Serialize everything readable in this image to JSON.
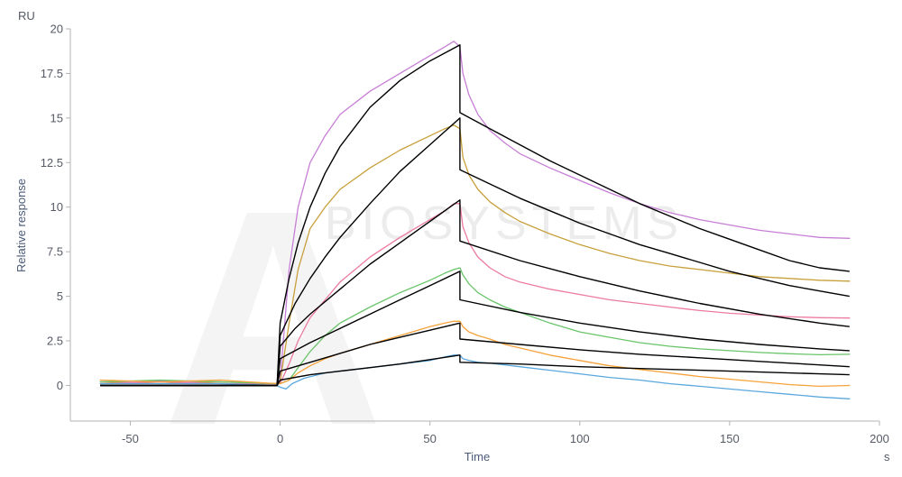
{
  "chart_data": {
    "type": "line",
    "ylabel": "Relative response",
    "yunit": "RU",
    "xlabel": "Time",
    "xunit": "s",
    "xlim": [
      -70,
      200
    ],
    "ylim": [
      -2,
      20
    ],
    "xticks": [
      -50,
      0,
      50,
      100,
      150,
      200
    ],
    "yticks": [
      0,
      2.5,
      5,
      7.5,
      10,
      12.5,
      15,
      17.5,
      20
    ],
    "ytick_labels": [
      "0",
      "2.5",
      "5",
      "7.5",
      "10",
      "12.5",
      "15",
      "17.5",
      "20"
    ],
    "grid": false,
    "legend": "none",
    "watermark": {
      "letter": "A",
      "text": "BIOSYSTEMS"
    },
    "series": [
      {
        "color": "#c77fd6",
        "x": [
          -60,
          -40,
          -20,
          -1,
          0,
          3,
          6,
          10,
          15,
          20,
          30,
          40,
          50,
          55,
          58,
          60,
          61,
          63,
          66,
          70,
          75,
          80,
          90,
          100,
          110,
          120,
          130,
          140,
          150,
          160,
          170,
          180,
          190
        ],
        "y": [
          0.2,
          0.25,
          0.2,
          0.1,
          0.3,
          6.5,
          10.0,
          12.5,
          14.0,
          15.2,
          16.5,
          17.5,
          18.5,
          19.0,
          19.3,
          19.0,
          17.5,
          16.3,
          15.2,
          14.3,
          13.6,
          13.0,
          12.2,
          11.5,
          10.8,
          10.2,
          9.7,
          9.3,
          9.0,
          8.7,
          8.5,
          8.3,
          8.25
        ]
      },
      {
        "color": "#c8a03c",
        "x": [
          -60,
          -40,
          -20,
          -1,
          0,
          3,
          6,
          10,
          15,
          20,
          30,
          40,
          50,
          55,
          58,
          60,
          61,
          63,
          66,
          70,
          75,
          80,
          90,
          100,
          110,
          120,
          130,
          140,
          150,
          160,
          170,
          180,
          190
        ],
        "y": [
          0.2,
          0.1,
          0.2,
          0.1,
          0.2,
          3.5,
          6.5,
          8.8,
          10.0,
          11.0,
          12.2,
          13.2,
          14.0,
          14.4,
          14.6,
          14.4,
          12.8,
          11.8,
          11.0,
          10.3,
          9.7,
          9.2,
          8.5,
          7.9,
          7.4,
          7.0,
          6.7,
          6.5,
          6.3,
          6.1,
          6.0,
          5.9,
          5.85
        ]
      },
      {
        "color": "#ec7aa3",
        "x": [
          -60,
          -40,
          -20,
          -1,
          0,
          3,
          6,
          10,
          15,
          20,
          30,
          40,
          50,
          55,
          58,
          60,
          61,
          63,
          66,
          70,
          75,
          80,
          90,
          100,
          110,
          120,
          130,
          140,
          150,
          160,
          170,
          180,
          190
        ],
        "y": [
          0.1,
          0.2,
          0.1,
          0.1,
          0.1,
          1.2,
          2.5,
          3.8,
          4.8,
          5.8,
          7.2,
          8.3,
          9.3,
          9.8,
          10.2,
          10.2,
          8.9,
          8.0,
          7.2,
          6.6,
          6.1,
          5.8,
          5.4,
          5.1,
          4.8,
          4.6,
          4.4,
          4.2,
          4.05,
          3.95,
          3.85,
          3.8,
          3.78
        ]
      },
      {
        "color": "#6ac46a",
        "x": [
          -60,
          -40,
          -20,
          -1,
          0,
          3,
          6,
          10,
          15,
          20,
          30,
          40,
          50,
          55,
          58,
          60,
          61,
          63,
          66,
          70,
          75,
          80,
          90,
          100,
          110,
          120,
          130,
          140,
          150,
          160,
          170,
          180,
          190
        ],
        "y": [
          0.2,
          0.3,
          0.2,
          0.1,
          0.1,
          0.3,
          1.0,
          1.9,
          2.8,
          3.5,
          4.4,
          5.2,
          5.9,
          6.3,
          6.5,
          6.6,
          6.2,
          5.7,
          5.2,
          4.8,
          4.4,
          4.1,
          3.5,
          3.0,
          2.7,
          2.4,
          2.2,
          2.05,
          1.95,
          1.85,
          1.78,
          1.72,
          1.75
        ]
      },
      {
        "color": "#f5a23a",
        "x": [
          -60,
          -40,
          -20,
          -1,
          0,
          3,
          6,
          10,
          15,
          20,
          30,
          40,
          50,
          55,
          58,
          60,
          61,
          63,
          66,
          70,
          75,
          80,
          90,
          100,
          110,
          120,
          130,
          140,
          150,
          160,
          170,
          180,
          190
        ],
        "y": [
          0.3,
          0.2,
          0.3,
          0.1,
          0.1,
          0.3,
          0.7,
          1.1,
          1.5,
          1.8,
          2.3,
          2.8,
          3.3,
          3.5,
          3.6,
          3.6,
          3.3,
          3.0,
          2.8,
          2.6,
          2.3,
          2.1,
          1.7,
          1.4,
          1.1,
          0.9,
          0.7,
          0.5,
          0.35,
          0.2,
          0.05,
          -0.05,
          0.0
        ]
      },
      {
        "color": "#5aa8de",
        "x": [
          -60,
          -40,
          -20,
          -1,
          0,
          2,
          4,
          8,
          15,
          20,
          30,
          40,
          50,
          55,
          58,
          60,
          61,
          63,
          66,
          70,
          75,
          80,
          90,
          100,
          110,
          120,
          130,
          140,
          150,
          160,
          170,
          180,
          190
        ],
        "y": [
          0.1,
          0.1,
          0.1,
          0.0,
          -0.1,
          -0.2,
          0.1,
          0.4,
          0.7,
          0.8,
          1.0,
          1.2,
          1.4,
          1.6,
          1.7,
          1.7,
          1.5,
          1.4,
          1.3,
          1.25,
          1.15,
          1.05,
          0.85,
          0.65,
          0.45,
          0.3,
          0.1,
          -0.05,
          -0.2,
          -0.35,
          -0.5,
          -0.65,
          -0.75
        ]
      }
    ],
    "fits": [
      {
        "color": "#000000",
        "x": [
          -60,
          -1,
          0,
          3,
          6,
          10,
          15,
          20,
          30,
          40,
          50,
          60,
          60.01,
          70,
          80,
          90,
          100,
          110,
          120,
          130,
          140,
          150,
          160,
          170,
          180,
          190
        ],
        "y": [
          0,
          0,
          3.5,
          6.0,
          8.0,
          10.0,
          11.9,
          13.4,
          15.6,
          17.1,
          18.2,
          19.1,
          15.3,
          14.4,
          13.5,
          12.6,
          11.8,
          11.0,
          10.2,
          9.5,
          8.8,
          8.2,
          7.6,
          7.0,
          6.6,
          6.4
        ]
      },
      {
        "color": "#000000",
        "x": [
          -60,
          -1,
          0,
          5,
          10,
          15,
          20,
          30,
          40,
          50,
          60,
          60.01,
          70,
          80,
          90,
          100,
          110,
          120,
          130,
          140,
          150,
          160,
          170,
          180,
          190
        ],
        "y": [
          0,
          0,
          2.8,
          4.6,
          6.0,
          7.2,
          8.3,
          10.2,
          12.0,
          13.5,
          15.0,
          12.1,
          11.3,
          10.5,
          9.8,
          9.1,
          8.5,
          7.9,
          7.4,
          6.9,
          6.4,
          6.0,
          5.6,
          5.3,
          5.0
        ]
      },
      {
        "color": "#000000",
        "x": [
          -60,
          -1,
          0,
          5,
          10,
          20,
          30,
          40,
          50,
          60,
          60.01,
          80,
          100,
          120,
          140,
          160,
          180,
          190
        ],
        "y": [
          0,
          0,
          2.2,
          3.2,
          4.0,
          5.4,
          6.8,
          8.0,
          9.2,
          10.4,
          8.1,
          7.0,
          6.1,
          5.3,
          4.6,
          4.0,
          3.5,
          3.3
        ]
      },
      {
        "color": "#000000",
        "x": [
          -60,
          -1,
          0,
          10,
          20,
          30,
          40,
          50,
          60,
          60.01,
          80,
          100,
          120,
          140,
          160,
          180,
          190
        ],
        "y": [
          0,
          0,
          1.5,
          2.4,
          3.2,
          4.0,
          4.8,
          5.6,
          6.4,
          4.8,
          4.1,
          3.5,
          3.0,
          2.6,
          2.3,
          2.05,
          1.95
        ]
      },
      {
        "color": "#000000",
        "x": [
          -60,
          -1,
          0,
          10,
          20,
          30,
          40,
          50,
          60,
          60.01,
          80,
          100,
          120,
          140,
          160,
          180,
          190
        ],
        "y": [
          0,
          0,
          0.8,
          1.3,
          1.8,
          2.3,
          2.7,
          3.1,
          3.5,
          2.6,
          2.3,
          2.0,
          1.75,
          1.55,
          1.35,
          1.15,
          1.05
        ]
      },
      {
        "color": "#000000",
        "x": [
          -60,
          -1,
          0,
          10,
          20,
          30,
          40,
          50,
          60,
          60.01,
          80,
          100,
          120,
          140,
          160,
          180,
          190
        ],
        "y": [
          0,
          0,
          0.3,
          0.6,
          0.8,
          1.0,
          1.2,
          1.45,
          1.7,
          1.3,
          1.2,
          1.05,
          0.95,
          0.85,
          0.75,
          0.65,
          0.6
        ]
      }
    ]
  }
}
